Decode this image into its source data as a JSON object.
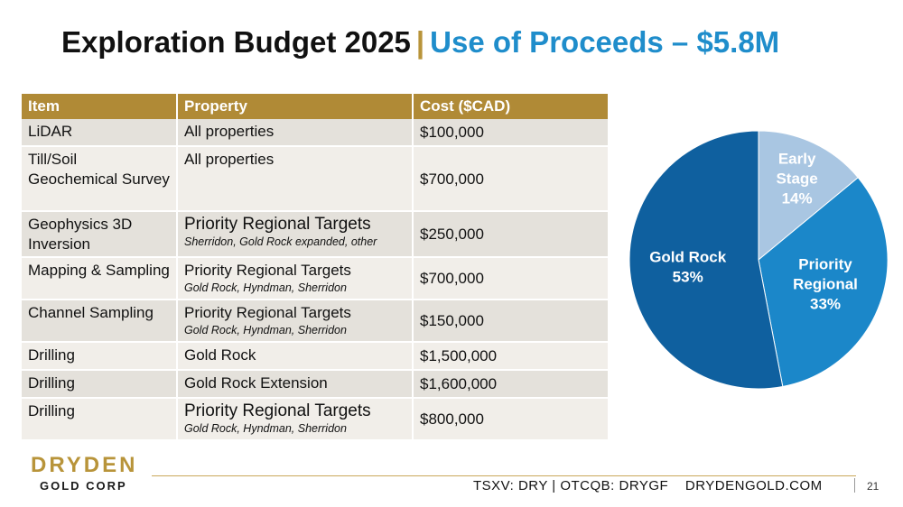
{
  "header": {
    "title_main": "Exploration Budget 2025",
    "separator": "|",
    "title_accent": "Use of Proceeds – $5.8M"
  },
  "table": {
    "columns": [
      "Item",
      "Property",
      "Cost ($CAD)"
    ],
    "rows": [
      {
        "item": "LiDAR",
        "property": "All properties",
        "property_note": "",
        "cost": "$100,000"
      },
      {
        "item": "Till/Soil Geochemical Survey",
        "property": "All properties",
        "property_note": "",
        "cost": "$700,000"
      },
      {
        "item": "Geophysics 3D Inversion",
        "property": "Priority Regional Targets",
        "property_note": "Sherridon, Gold Rock expanded, other",
        "cost": "$250,000"
      },
      {
        "item": "Mapping & Sampling",
        "property": "Priority Regional Targets",
        "property_note": "Gold Rock, Hyndman, Sherridon",
        "cost": "$700,000"
      },
      {
        "item": "Channel Sampling",
        "property": "Priority Regional Targets",
        "property_note": "Gold Rock, Hyndman, Sherridon",
        "cost": "$150,000"
      },
      {
        "item": "Drilling",
        "property": "Gold Rock",
        "property_note": "",
        "cost": "$1,500,000"
      },
      {
        "item": "Drilling",
        "property": "Gold Rock Extension",
        "property_note": "",
        "cost": "$1,600,000"
      },
      {
        "item": "Drilling",
        "property": "Priority Regional Targets",
        "property_note": "Gold Rock, Hyndman, Sherridon",
        "cost": "$800,000"
      }
    ]
  },
  "chart_data": {
    "type": "pie",
    "slices": [
      {
        "label": "Early Stage",
        "label_lines": [
          "Early",
          "Stage"
        ],
        "value": 14,
        "value_label": "14%",
        "color": "#A9C6E2",
        "text_color": "#ffffff"
      },
      {
        "label": "Priority Regional",
        "label_lines": [
          "Priority",
          "Regional"
        ],
        "value": 33,
        "value_label": "33%",
        "color": "#1B87C9",
        "text_color": "#ffffff"
      },
      {
        "label": "Gold Rock",
        "label_lines": [
          "Gold Rock"
        ],
        "value": 53,
        "value_label": "53%",
        "color": "#0F609F",
        "text_color": "#ffffff"
      }
    ],
    "start_angle_deg": 0,
    "direction": "clockwise"
  },
  "footer": {
    "logo_word": "DRYDEN",
    "logo_sub": "GOLD CORP",
    "tickers": "TSXV: DRY | OTCQB: DRYGF",
    "website": "DRYDENGOLD.COM",
    "page_number": "21"
  },
  "colors": {
    "accent_blue": "#1F8DCB",
    "gold": "#B8943A",
    "header_gold": "#B08A36"
  }
}
